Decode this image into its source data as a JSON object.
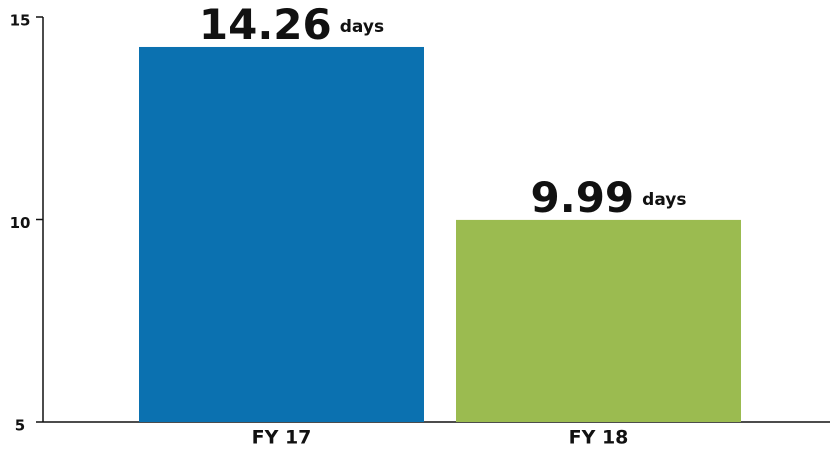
{
  "chart_data": {
    "type": "bar",
    "categories": [
      "FY 17",
      "FY 18"
    ],
    "values": [
      14.26,
      9.99
    ],
    "value_unit": "days",
    "colors": [
      "#0b71b0",
      "#9bbb50"
    ],
    "ylim": [
      5,
      15
    ],
    "yticks": [
      5,
      10,
      15
    ],
    "grid": false
  }
}
